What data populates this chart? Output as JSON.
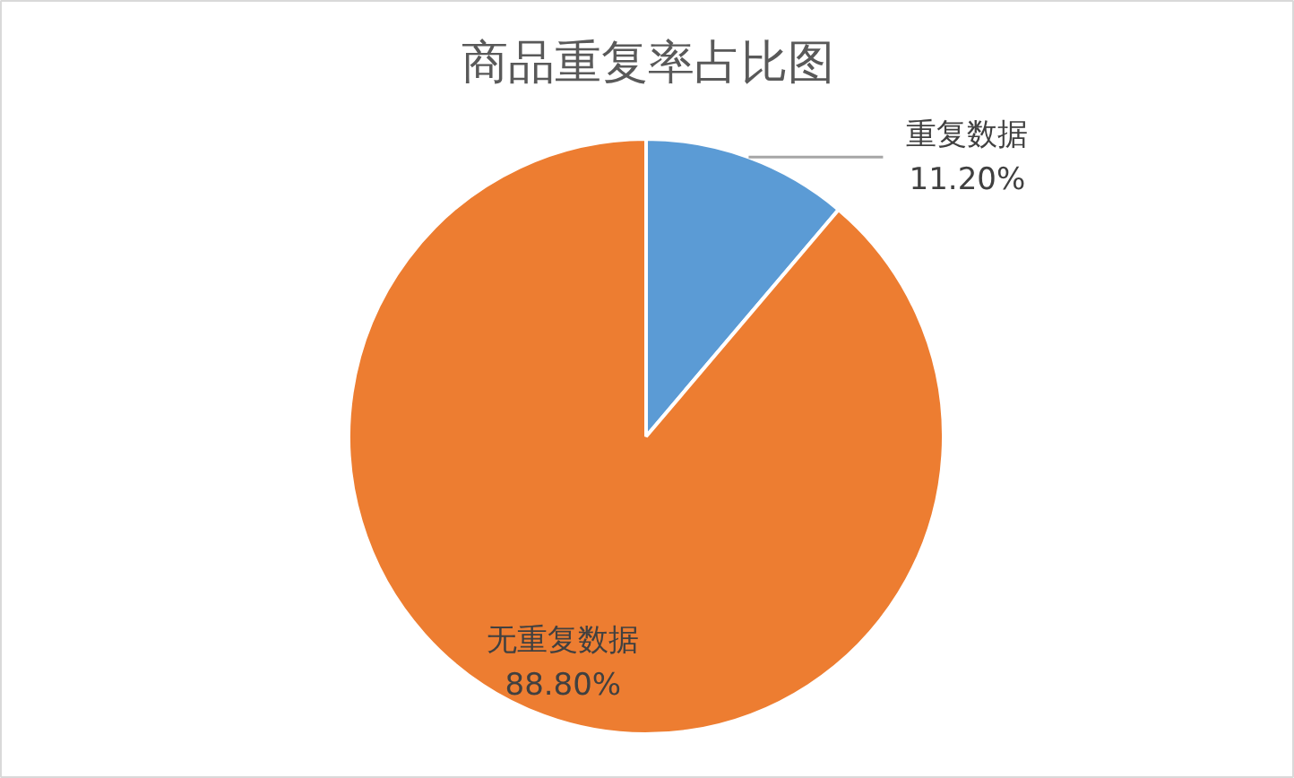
{
  "chart_data": {
    "type": "pie",
    "title": "商品重复率占比图",
    "categories": [
      "重复数据",
      "无重复数据"
    ],
    "values": [
      11.2,
      88.8
    ],
    "colors": [
      "#5b9bd5",
      "#ed7d31"
    ],
    "value_labels": [
      "11.20%",
      "88.80%"
    ]
  }
}
